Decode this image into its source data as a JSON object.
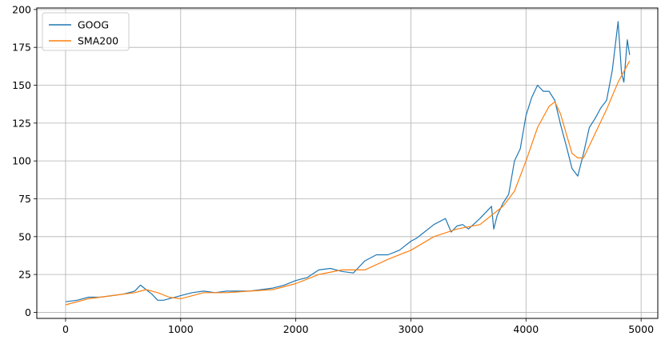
{
  "chart_data": {
    "type": "line",
    "title": "",
    "xlabel": "",
    "ylabel": "",
    "xlim": [
      -250,
      5145
    ],
    "ylim": [
      -4,
      201
    ],
    "xticks": [
      0,
      1000,
      2000,
      3000,
      4000,
      5000
    ],
    "yticks": [
      0,
      25,
      50,
      75,
      100,
      125,
      150,
      175,
      200
    ],
    "grid": true,
    "legend": "top-left",
    "series": [
      {
        "name": "GOOG",
        "color": "#1f77b4",
        "x": [
          0,
          100,
          200,
          300,
          400,
          500,
          600,
          650,
          700,
          750,
          800,
          850,
          900,
          1000,
          1100,
          1200,
          1300,
          1400,
          1500,
          1600,
          1700,
          1800,
          1900,
          2000,
          2100,
          2200,
          2300,
          2400,
          2500,
          2550,
          2600,
          2700,
          2800,
          2900,
          3000,
          3050,
          3100,
          3200,
          3300,
          3350,
          3400,
          3450,
          3500,
          3600,
          3700,
          3720,
          3750,
          3800,
          3850,
          3900,
          3950,
          4000,
          4050,
          4100,
          4150,
          4200,
          4250,
          4300,
          4350,
          4400,
          4450,
          4500,
          4550,
          4600,
          4650,
          4700,
          4750,
          4800,
          4830,
          4850,
          4880,
          4900
        ],
        "values": [
          7,
          8,
          10,
          10,
          11,
          12,
          14,
          18,
          15,
          12,
          8,
          8,
          9,
          11,
          13,
          14,
          13,
          14,
          14,
          14,
          15,
          16,
          18,
          21,
          23,
          28,
          29,
          27,
          26,
          30,
          34,
          38,
          38,
          41,
          47,
          49,
          52,
          58,
          62,
          53,
          57,
          58,
          55,
          62,
          70,
          55,
          64,
          72,
          78,
          100,
          108,
          130,
          142,
          150,
          146,
          146,
          140,
          124,
          110,
          95,
          90,
          105,
          122,
          128,
          135,
          140,
          160,
          192,
          158,
          152,
          180,
          170
        ]
      },
      {
        "name": "SMA200",
        "color": "#ff7f0e",
        "x": [
          0,
          200,
          400,
          600,
          700,
          800,
          900,
          1000,
          1200,
          1400,
          1600,
          1800,
          2000,
          2200,
          2400,
          2600,
          2800,
          3000,
          3200,
          3400,
          3600,
          3800,
          3900,
          4000,
          4100,
          4200,
          4250,
          4300,
          4350,
          4400,
          4450,
          4500,
          4550,
          4600,
          4700,
          4800,
          4900
        ],
        "values": [
          5,
          9,
          11,
          13,
          15,
          13,
          10,
          9,
          13,
          13,
          14,
          15,
          19,
          25,
          28,
          28,
          35,
          41,
          50,
          55,
          58,
          70,
          80,
          100,
          122,
          136,
          139,
          131,
          118,
          105,
          102,
          102,
          110,
          118,
          134,
          152,
          166
        ]
      }
    ]
  }
}
